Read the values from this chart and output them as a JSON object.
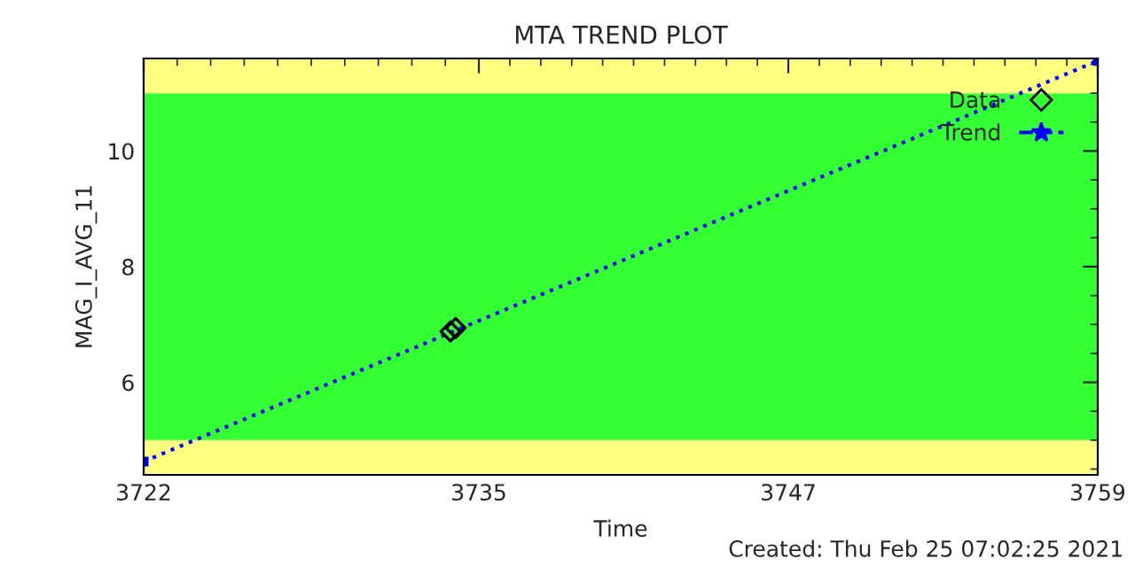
{
  "chart_data": {
    "type": "scatter",
    "title": "MTA TREND PLOT",
    "xlabel": "Time",
    "ylabel": "MAG_I_AVG_11",
    "xlim": [
      3722,
      3759
    ],
    "xticks": [
      3722,
      3735,
      3747,
      3759
    ],
    "ylim": [
      4.4,
      11.6
    ],
    "yticks": [
      6,
      8,
      10
    ],
    "bands": [
      {
        "axis": "y",
        "from": 4.4,
        "to": 5,
        "color": "#ffff80"
      },
      {
        "axis": "y",
        "from": 5,
        "to": 11,
        "color": "#33ff33"
      },
      {
        "axis": "y",
        "from": 11,
        "to": 11.6,
        "color": "#ffff80"
      }
    ],
    "series": [
      {
        "name": "Data",
        "color": "#000000",
        "marker": "diamond",
        "x": [
          3733.9,
          3734.1
        ],
        "values": [
          6.88,
          6.94
        ]
      },
      {
        "name": "Trend",
        "type": "line",
        "color": "#0000ff",
        "marker": "square",
        "line_style": "dotted",
        "x": [
          3722,
          3759
        ],
        "values": [
          4.63,
          11.56
        ]
      }
    ],
    "legend": "top right",
    "grid": false,
    "annotations": [
      "Created: Thu Feb 25 07:02:25 2021"
    ]
  }
}
